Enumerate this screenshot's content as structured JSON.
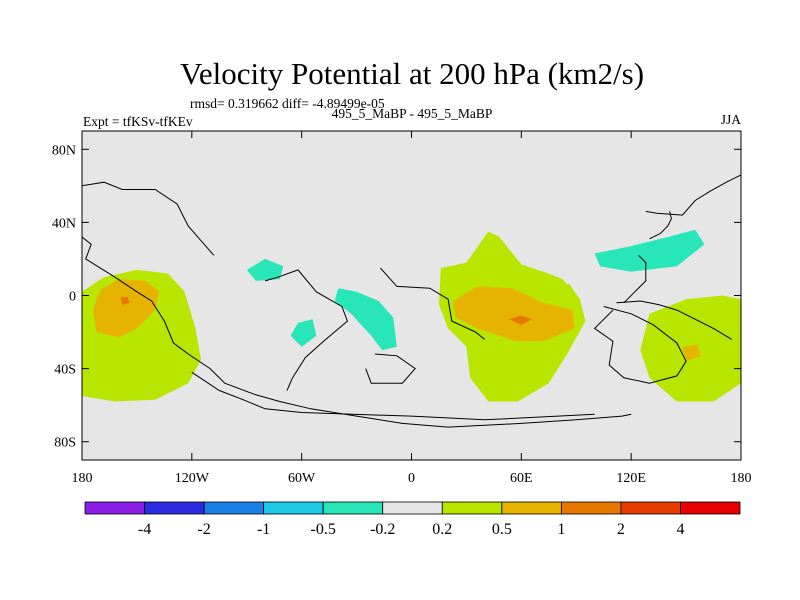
{
  "chart_data": {
    "type": "filled-contour-map",
    "title": "Velocity Potential at 200 hPa (km2/s)",
    "stats_label": "rmsd= 0.319662 diff= -4.89499e-05",
    "left_label": "Expt = tfKSv-tfKEv",
    "center_label": "495_5_MaBP - 495_5_MaBP",
    "right_label": "JJA",
    "x_ticks": [
      "180",
      "120W",
      "60W",
      "0",
      "60E",
      "120E",
      "180"
    ],
    "x_tick_values": [
      -180,
      -120,
      -60,
      0,
      60,
      120,
      180
    ],
    "y_ticks": [
      "80N",
      "40N",
      "0",
      "40S",
      "80S"
    ],
    "y_tick_values": [
      80,
      40,
      0,
      -40,
      -80
    ],
    "xlim": [
      -180,
      180
    ],
    "ylim": [
      -90,
      90
    ],
    "contour_levels": [
      -4,
      -2,
      -1,
      -0.5,
      -0.2,
      0.2,
      0.5,
      1,
      2,
      4
    ],
    "colorbar_labels": [
      "-4",
      "-2",
      "-1",
      "-0.5",
      "-0.2",
      "0.2",
      "0.5",
      "1",
      "2",
      "4"
    ],
    "colorbar_colors": [
      "#8a1ee6",
      "#2a2ae0",
      "#1a80e6",
      "#1ec8e6",
      "#28e6b8",
      "#e6e6e6",
      "#b8e600",
      "#e6b400",
      "#e67800",
      "#e63c00",
      "#e60000"
    ],
    "background_color": "#e6e6e6",
    "fields": [
      {
        "name": "positive-west-pacific",
        "level": 0.2,
        "lonlat": [
          [
            -180,
            -55
          ],
          [
            -162,
            -58
          ],
          [
            -140,
            -57
          ],
          [
            -122,
            -48
          ],
          [
            -115,
            -35
          ],
          [
            -118,
            -18
          ],
          [
            -124,
            2
          ],
          [
            -133,
            12
          ],
          [
            -150,
            14
          ],
          [
            -168,
            10
          ],
          [
            -180,
            2
          ]
        ]
      },
      {
        "name": "positive-west-pacific-core",
        "level": 0.5,
        "lonlat": [
          [
            -172,
            -20
          ],
          [
            -160,
            -23
          ],
          [
            -150,
            -18
          ],
          [
            -140,
            -8
          ],
          [
            -138,
            2
          ],
          [
            -145,
            8
          ],
          [
            -160,
            9
          ],
          [
            -170,
            3
          ],
          [
            -174,
            -8
          ]
        ]
      },
      {
        "name": "positive-west-pacific-max",
        "level": 1,
        "lonlat": [
          [
            -159,
            -1
          ],
          [
            -155,
            -1
          ],
          [
            -154,
            -4
          ],
          [
            -158,
            -5
          ]
        ]
      },
      {
        "name": "negative-north-pacific-west",
        "level": -0.2,
        "lonlat": [
          [
            -180,
            50
          ],
          [
            -158,
            50
          ],
          [
            -150,
            47
          ],
          [
            -150,
            38
          ],
          [
            -164,
            22
          ],
          [
            -180,
            18
          ]
        ]
      },
      {
        "name": "negative-americas-atlantic",
        "level": -0.2,
        "lonlat": [
          [
            -102,
            22
          ],
          [
            -85,
            38
          ],
          [
            -70,
            35
          ],
          [
            -55,
            33
          ],
          [
            -38,
            30
          ],
          [
            -25,
            22
          ],
          [
            -12,
            14
          ],
          [
            -2,
            4
          ],
          [
            2,
            -15
          ],
          [
            -5,
            -30
          ],
          [
            -12,
            -42
          ],
          [
            -30,
            -44
          ],
          [
            -45,
            -34
          ],
          [
            -55,
            -45
          ],
          [
            -65,
            -47
          ],
          [
            -80,
            -47
          ],
          [
            -90,
            -37
          ],
          [
            -92,
            -20
          ],
          [
            -85,
            -5
          ],
          [
            -95,
            8
          ]
        ]
      },
      {
        "name": "negative-americas-core-north",
        "level": -0.5,
        "lonlat": [
          [
            -90,
            14
          ],
          [
            -80,
            20
          ],
          [
            -70,
            16
          ],
          [
            -72,
            9
          ],
          [
            -85,
            8
          ]
        ]
      },
      {
        "name": "negative-south-america-core",
        "level": -0.5,
        "lonlat": [
          [
            -62,
            -15
          ],
          [
            -54,
            -13
          ],
          [
            -52,
            -22
          ],
          [
            -60,
            -28
          ],
          [
            -66,
            -22
          ]
        ]
      },
      {
        "name": "negative-atlantic-core",
        "level": -0.5,
        "lonlat": [
          [
            -40,
            4
          ],
          [
            -30,
            2
          ],
          [
            -18,
            -3
          ],
          [
            -10,
            -12
          ],
          [
            -8,
            -28
          ],
          [
            -16,
            -30
          ],
          [
            -22,
            -22
          ],
          [
            -33,
            -10
          ],
          [
            -42,
            -3
          ]
        ]
      },
      {
        "name": "neutral-gap-north-atlantic",
        "level": 0.0,
        "lonlat": [
          [
            -57,
            16
          ],
          [
            -45,
            18
          ],
          [
            -35,
            16
          ],
          [
            -33,
            12
          ],
          [
            -45,
            8
          ],
          [
            -57,
            10
          ]
        ]
      },
      {
        "name": "positive-africa-indian-ocean",
        "level": 0.2,
        "lonlat": [
          [
            16,
            15
          ],
          [
            30,
            18
          ],
          [
            42,
            35
          ],
          [
            48,
            32
          ],
          [
            60,
            17
          ],
          [
            75,
            12
          ],
          [
            85,
            8
          ],
          [
            92,
            -2
          ],
          [
            95,
            -14
          ],
          [
            85,
            -32
          ],
          [
            75,
            -48
          ],
          [
            58,
            -58
          ],
          [
            42,
            -58
          ],
          [
            32,
            -45
          ],
          [
            30,
            -28
          ],
          [
            20,
            -18
          ],
          [
            15,
            -5
          ]
        ]
      },
      {
        "name": "positive-indian-ocean-core",
        "level": 0.5,
        "lonlat": [
          [
            23,
            -3
          ],
          [
            36,
            5
          ],
          [
            55,
            4
          ],
          [
            72,
            -4
          ],
          [
            88,
            -8
          ],
          [
            89,
            -18
          ],
          [
            72,
            -25
          ],
          [
            57,
            -25
          ],
          [
            36,
            -18
          ],
          [
            24,
            -12
          ]
        ]
      },
      {
        "name": "positive-indian-ocean-max",
        "level": 1,
        "lonlat": [
          [
            53,
            -13
          ],
          [
            60,
            -11
          ],
          [
            66,
            -13
          ],
          [
            60,
            -16
          ]
        ]
      },
      {
        "name": "negative-asia",
        "level": -0.2,
        "lonlat": [
          [
            80,
            12
          ],
          [
            90,
            30
          ],
          [
            110,
            45
          ],
          [
            130,
            50
          ],
          [
            150,
            56
          ],
          [
            175,
            58
          ],
          [
            180,
            56
          ],
          [
            180,
            28
          ],
          [
            160,
            24
          ],
          [
            140,
            18
          ],
          [
            118,
            14
          ],
          [
            100,
            10
          ],
          [
            85,
            6
          ]
        ]
      },
      {
        "name": "negative-asia-core",
        "level": -0.5,
        "lonlat": [
          [
            100,
            23
          ],
          [
            120,
            27
          ],
          [
            140,
            32
          ],
          [
            155,
            36
          ],
          [
            160,
            28
          ],
          [
            145,
            16
          ],
          [
            120,
            13
          ],
          [
            103,
            16
          ]
        ]
      },
      {
        "name": "positive-south-pacific",
        "level": 0.2,
        "lonlat": [
          [
            130,
            -10
          ],
          [
            150,
            -2
          ],
          [
            170,
            0
          ],
          [
            180,
            -2
          ],
          [
            180,
            -48
          ],
          [
            165,
            -58
          ],
          [
            145,
            -58
          ],
          [
            130,
            -45
          ],
          [
            125,
            -30
          ]
        ]
      },
      {
        "name": "positive-south-pacific-core",
        "level": 0.5,
        "lonlat": [
          [
            148,
            -28
          ],
          [
            156,
            -27
          ],
          [
            158,
            -33
          ],
          [
            150,
            -36
          ]
        ]
      }
    ],
    "coastlines": [
      {
        "name": "coast-west-pacific",
        "lonlat": [
          [
            -180,
            32
          ],
          [
            -175,
            28
          ],
          [
            -178,
            20
          ],
          [
            -170,
            15
          ],
          [
            -162,
            10
          ],
          [
            -150,
            2
          ],
          [
            -142,
            -3
          ],
          [
            -135,
            -14
          ],
          [
            -130,
            -26
          ],
          [
            -122,
            -32
          ],
          [
            -110,
            -40
          ],
          [
            -102,
            -48
          ],
          [
            -86,
            -54
          ],
          [
            -72,
            -58
          ],
          [
            -55,
            -62
          ],
          [
            -30,
            -66
          ],
          [
            -5,
            -70
          ],
          [
            20,
            -72
          ],
          [
            60,
            -70
          ],
          [
            90,
            -68
          ],
          [
            115,
            -66
          ],
          [
            120,
            -65
          ]
        ]
      },
      {
        "name": "coast-antarctic-inner",
        "lonlat": [
          [
            -120,
            -42
          ],
          [
            -105,
            -52
          ],
          [
            -92,
            -57
          ],
          [
            -80,
            -62
          ],
          [
            -60,
            -64
          ],
          [
            -32,
            -65
          ],
          [
            0,
            -66
          ],
          [
            40,
            -68
          ],
          [
            80,
            -66
          ],
          [
            100,
            -65
          ]
        ]
      },
      {
        "name": "coast-south-america",
        "lonlat": [
          [
            -80,
            8
          ],
          [
            -73,
            10
          ],
          [
            -62,
            14
          ],
          [
            -52,
            2
          ],
          [
            -38,
            -6
          ],
          [
            -35,
            -14
          ],
          [
            -48,
            -25
          ],
          [
            -58,
            -34
          ],
          [
            -65,
            -45
          ],
          [
            -68,
            -52
          ]
        ]
      },
      {
        "name": "coast-atlantic-islands",
        "lonlat": [
          [
            -17,
            15
          ],
          [
            -8,
            5
          ],
          [
            10,
            4
          ],
          [
            20,
            -2
          ],
          [
            22,
            -14
          ],
          [
            35,
            -20
          ],
          [
            40,
            -24
          ]
        ]
      },
      {
        "name": "coast-antarctic-island",
        "lonlat": [
          [
            -20,
            -32
          ],
          [
            -8,
            -33
          ],
          [
            2,
            -40
          ],
          [
            -5,
            -48
          ],
          [
            -22,
            -48
          ],
          [
            -25,
            -40
          ]
        ]
      },
      {
        "name": "coast-asia-east",
        "lonlat": [
          [
            105,
            -6
          ],
          [
            120,
            -10
          ],
          [
            132,
            -16
          ],
          [
            145,
            -26
          ],
          [
            150,
            -36
          ],
          [
            145,
            -44
          ],
          [
            130,
            -48
          ],
          [
            116,
            -45
          ],
          [
            108,
            -38
          ],
          [
            110,
            -25
          ],
          [
            100,
            -18
          ],
          [
            110,
            -8
          ]
        ]
      },
      {
        "name": "coast-indonesia",
        "lonlat": [
          [
            112,
            -4
          ],
          [
            125,
            -3
          ],
          [
            135,
            -5
          ],
          [
            145,
            -8
          ],
          [
            153,
            -12
          ],
          [
            165,
            -18
          ],
          [
            175,
            -24
          ]
        ]
      },
      {
        "name": "coast-far-east",
        "lonlat": [
          [
            128,
            46
          ],
          [
            134,
            45
          ],
          [
            148,
            44
          ],
          [
            155,
            52
          ],
          [
            163,
            57
          ],
          [
            172,
            62
          ],
          [
            180,
            66
          ]
        ]
      },
      {
        "name": "coast-japan",
        "lonlat": [
          [
            130,
            31
          ],
          [
            136,
            34
          ],
          [
            140,
            38
          ],
          [
            142,
            42
          ],
          [
            141,
            46
          ]
        ]
      },
      {
        "name": "coast-asia-south",
        "lonlat": [
          [
            124,
            22
          ],
          [
            128,
            18
          ],
          [
            128,
            8
          ],
          [
            122,
            2
          ],
          [
            118,
            -2
          ],
          [
            116,
            -4
          ]
        ]
      },
      {
        "name": "coast-north-america",
        "lonlat": [
          [
            -180,
            60
          ],
          [
            -168,
            62
          ],
          [
            -158,
            58
          ],
          [
            -140,
            58
          ],
          [
            -128,
            50
          ],
          [
            -122,
            38
          ],
          [
            -115,
            30
          ],
          [
            -108,
            22
          ]
        ]
      }
    ]
  }
}
